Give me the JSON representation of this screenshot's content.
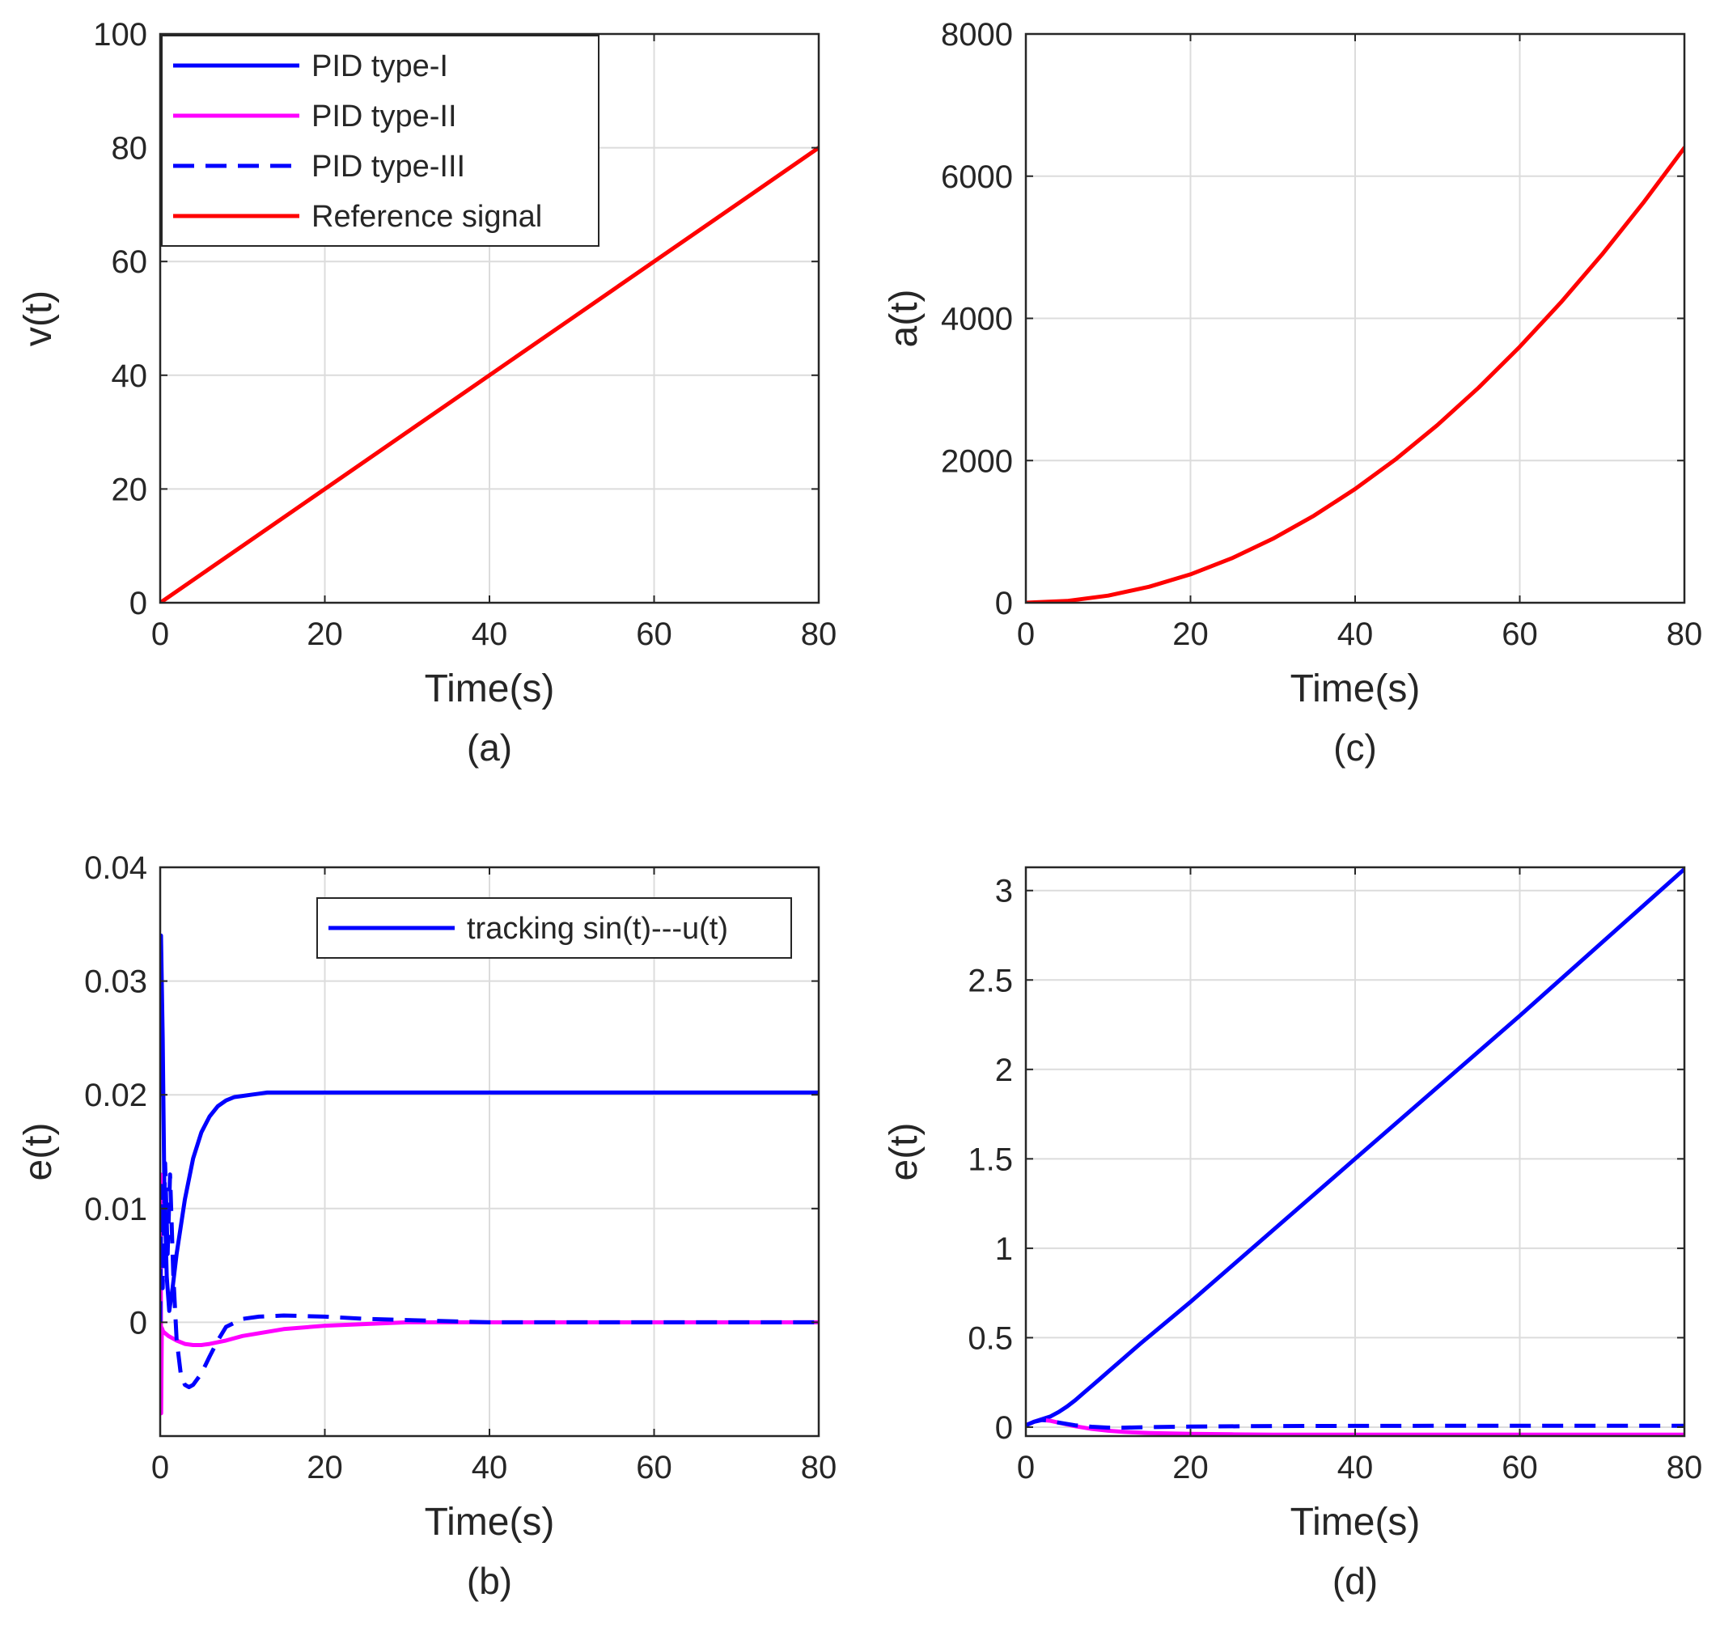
{
  "colors": {
    "pid_type_1": "#0000ff",
    "pid_type_2": "#ff00ff",
    "pid_type_3": "#0000ff",
    "reference": "#ff0000",
    "grid": "#dcdcdc",
    "axis": "#262626"
  },
  "chart_data": [
    {
      "id": "a",
      "type": "line",
      "caption": "(a)",
      "xlabel": "Time(s)",
      "ylabel": "v(t)",
      "xlim": [
        0,
        80
      ],
      "ylim": [
        0,
        100
      ],
      "xticks": [
        0,
        20,
        40,
        60,
        80
      ],
      "xtick_labels": [
        "0",
        "20",
        "40",
        "60",
        "80"
      ],
      "yticks": [
        0,
        20,
        40,
        60,
        80,
        100
      ],
      "ytick_labels": [
        "0",
        "20",
        "40",
        "60",
        "80",
        "100"
      ],
      "grid": true,
      "legend": {
        "placement": "top-left",
        "entries": [
          {
            "label": "PID type-I",
            "style": "solid",
            "color_key": "pid_type_1"
          },
          {
            "label": "PID type-II",
            "style": "solid",
            "color_key": "pid_type_2"
          },
          {
            "label": "PID type-III",
            "style": "dashed",
            "color_key": "pid_type_3"
          },
          {
            "label": "Reference signal",
            "style": "solid",
            "color_key": "reference"
          }
        ]
      },
      "series": [
        {
          "name": "Reference signal",
          "style": "solid",
          "color_key": "reference",
          "x": [
            0,
            10,
            20,
            30,
            40,
            50,
            60,
            70,
            80
          ],
          "y": [
            0,
            10,
            20,
            30,
            40,
            50,
            60,
            70,
            80
          ]
        }
      ]
    },
    {
      "id": "c",
      "type": "line",
      "caption": "(c)",
      "xlabel": "Time(s)",
      "ylabel": "a(t)",
      "xlim": [
        0,
        80
      ],
      "ylim": [
        0,
        8000
      ],
      "xticks": [
        0,
        20,
        40,
        60,
        80
      ],
      "xtick_labels": [
        "0",
        "20",
        "40",
        "60",
        "80"
      ],
      "yticks": [
        0,
        2000,
        4000,
        6000,
        8000
      ],
      "ytick_labels": [
        "0",
        "2000",
        "4000",
        "6000",
        "8000"
      ],
      "grid": true,
      "series": [
        {
          "name": "Reference signal",
          "style": "solid",
          "color_key": "reference",
          "x": [
            0,
            5,
            10,
            15,
            20,
            25,
            30,
            35,
            40,
            45,
            50,
            55,
            60,
            65,
            70,
            75,
            80
          ],
          "y": [
            0,
            25,
            100,
            225,
            400,
            625,
            900,
            1225,
            1600,
            2025,
            2500,
            3025,
            3600,
            4225,
            4900,
            5625,
            6400
          ]
        }
      ]
    },
    {
      "id": "b",
      "type": "line",
      "caption": "(b)",
      "xlabel": "Time(s)",
      "ylabel": "e(t)",
      "xlim": [
        0,
        80
      ],
      "ylim": [
        -0.01,
        0.04
      ],
      "xticks": [
        0,
        20,
        40,
        60,
        80
      ],
      "xtick_labels": [
        "0",
        "20",
        "40",
        "60",
        "80"
      ],
      "yticks": [
        0,
        0.01,
        0.02,
        0.03,
        0.04
      ],
      "ytick_labels": [
        "0",
        "0.01",
        "0.02",
        "0.03",
        "0.04"
      ],
      "grid": true,
      "legend": {
        "placement": "top-right",
        "entries": [
          {
            "label": "tracking sin(t)---u(t)",
            "style": "solid",
            "color_key": "pid_type_1"
          }
        ]
      },
      "series": [
        {
          "name": "PID type-I",
          "style": "solid",
          "color_key": "pid_type_1",
          "x": [
            0,
            0.1,
            0.3,
            0.5,
            0.8,
            1.1,
            1.5,
            2,
            3,
            4,
            5,
            6,
            7,
            8,
            9,
            10,
            11,
            12,
            13,
            15,
            20,
            30,
            40,
            60,
            80
          ],
          "y": [
            0.02,
            0.034,
            0.025,
            0.012,
            0.004,
            0.001,
            0.003,
            0.006,
            0.0108,
            0.0144,
            0.0167,
            0.0181,
            0.019,
            0.0195,
            0.0198,
            0.0199,
            0.02,
            0.0201,
            0.0202,
            0.0202,
            0.0202,
            0.0202,
            0.0202,
            0.0202,
            0.0202
          ]
        },
        {
          "name": "PID type-II",
          "style": "solid",
          "color_key": "pid_type_2",
          "x": [
            0,
            0.05,
            0.12,
            0.2,
            0.35,
            0.5,
            1,
            2,
            3,
            4,
            5,
            6,
            8,
            10,
            15,
            20,
            30,
            40,
            60,
            80
          ],
          "y": [
            0,
            0.013,
            -0.008,
            -0.0005,
            -0.0008,
            -0.0009,
            -0.0012,
            -0.0016,
            -0.0019,
            -0.002,
            -0.002,
            -0.0019,
            -0.0016,
            -0.0012,
            -0.0006,
            -0.0003,
            0,
            0,
            0,
            0
          ]
        },
        {
          "name": "PID type-III",
          "style": "dashed",
          "color_key": "pid_type_3",
          "x": [
            0,
            0.15,
            0.3,
            0.6,
            0.9,
            1.2,
            1.6,
            2,
            2.5,
            3,
            3.5,
            4,
            5,
            6,
            7,
            8,
            10,
            12,
            15,
            20,
            25,
            30,
            40,
            60,
            80
          ],
          "y": [
            0,
            0.012,
            0.003,
            0.014,
            0.006,
            0.013,
            0.004,
            -0.0015,
            -0.0045,
            -0.0055,
            -0.0057,
            -0.0055,
            -0.0045,
            -0.003,
            -0.0016,
            -0.0004,
            0.0003,
            0.0005,
            0.0006,
            0.0005,
            0.0003,
            0.0002,
            0,
            0,
            0
          ]
        }
      ]
    },
    {
      "id": "d",
      "type": "line",
      "caption": "(d)",
      "xlabel": "Time(s)",
      "ylabel": "e(t)",
      "xlim": [
        0,
        80
      ],
      "ylim": [
        -0.05,
        3.13
      ],
      "xticks": [
        0,
        20,
        40,
        60,
        80
      ],
      "xtick_labels": [
        "0",
        "20",
        "40",
        "60",
        "80"
      ],
      "yticks": [
        0,
        0.5,
        1,
        1.5,
        2,
        2.5,
        3
      ],
      "ytick_labels": [
        "0",
        "0.5",
        "1",
        "1.5",
        "2",
        "2.5",
        "3"
      ],
      "grid": true,
      "series": [
        {
          "name": "PID type-I",
          "style": "solid",
          "color_key": "pid_type_1",
          "x": [
            0,
            1,
            2,
            3,
            4,
            5,
            6,
            7,
            8,
            9,
            10,
            12,
            14,
            20,
            40,
            60,
            80
          ],
          "y": [
            0.01,
            0.03,
            0.045,
            0.06,
            0.085,
            0.115,
            0.15,
            0.19,
            0.23,
            0.27,
            0.31,
            0.39,
            0.47,
            0.7,
            1.5,
            2.3,
            3.12
          ]
        },
        {
          "name": "PID type-II",
          "style": "solid",
          "color_key": "pid_type_2",
          "x": [
            0,
            1,
            2,
            3,
            4,
            6,
            8,
            10,
            12,
            15,
            20,
            25,
            30,
            40,
            60,
            80
          ],
          "y": [
            0.01,
            0.03,
            0.04,
            0.035,
            0.025,
            0.005,
            -0.01,
            -0.02,
            -0.027,
            -0.033,
            -0.038,
            -0.04,
            -0.042,
            -0.042,
            -0.042,
            -0.042
          ]
        },
        {
          "name": "PID type-III",
          "style": "dashed",
          "color_key": "pid_type_3",
          "x": [
            0,
            1,
            2,
            3,
            4,
            6,
            8,
            10,
            12,
            15,
            20,
            30,
            40,
            60,
            80
          ],
          "y": [
            0.01,
            0.03,
            0.04,
            0.035,
            0.025,
            0.01,
            0.002,
            -0.003,
            -0.003,
            0,
            0.003,
            0.006,
            0.007,
            0.008,
            0.008
          ]
        }
      ]
    }
  ]
}
